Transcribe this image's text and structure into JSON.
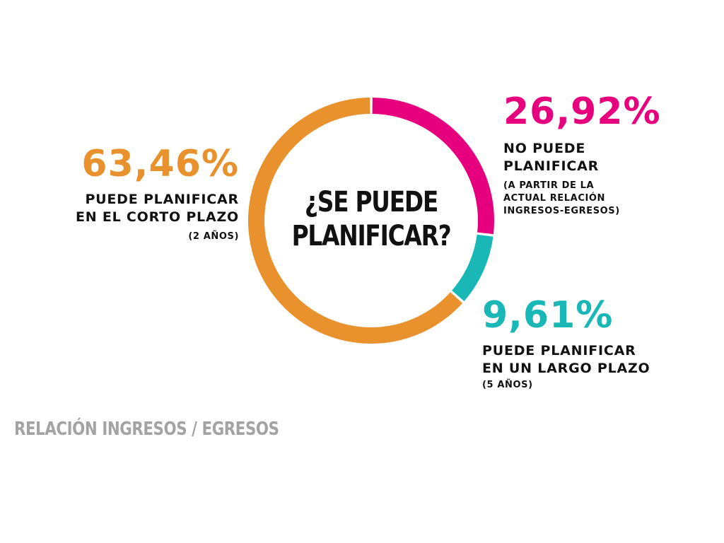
{
  "chart_data": {
    "type": "pie",
    "title": "¿SE PUEDE PLANIFICAR?",
    "title_lines": [
      "¿SE PUEDE",
      "PLANIFICAR?"
    ],
    "slices": [
      {
        "id": "none",
        "value": 26.92,
        "value_label": "26,92%",
        "label_lines": [
          "NO PUEDE",
          "PLANIFICAR"
        ],
        "note_lines": [
          "(A PARTIR DE LA",
          "ACTUAL RELACIÓN",
          "INGRESOS-EGRESOS)"
        ],
        "color": "#e6007e"
      },
      {
        "id": "long",
        "value": 9.61,
        "value_label": "9,61%",
        "label_lines": [
          "PUEDE PLANIFICAR",
          "EN UN LARGO PLAZO"
        ],
        "note_lines": [
          "(5 AÑOS)"
        ],
        "color": "#1ab7b7"
      },
      {
        "id": "short",
        "value": 63.46,
        "value_label": "63,46%",
        "label_lines": [
          "PUEDE PLANIFICAR",
          "EN EL CORTO PLAZO"
        ],
        "note_lines": [
          "(2 AÑOS)"
        ],
        "color": "#e8912d"
      }
    ]
  },
  "footer": "RELACIÓN INGRESOS / EGRESOS"
}
